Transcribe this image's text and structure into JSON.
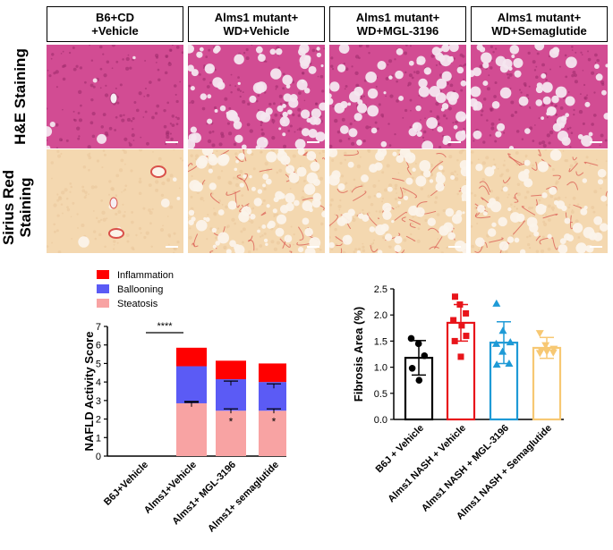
{
  "micrographs": {
    "column_headers": [
      "B6+CD\n+Vehicle",
      "Alms1 mutant+\nWD+Vehicle",
      "Alms1 mutant+\nWD+MGL-3196",
      "Alms1 mutant+\nWD+Semaglutide"
    ],
    "row_labels": [
      "H&E Staining",
      "Sirius Red\nStaining"
    ]
  },
  "chart_data": [
    {
      "type": "bar",
      "stacked": true,
      "ylabel": "NAFLD Activity Score",
      "ylim": [
        0,
        7
      ],
      "yticks": [
        0,
        1,
        2,
        3,
        4,
        5,
        6,
        7
      ],
      "categories": [
        "B6J+Vehicle",
        "Alms1+Vehicle",
        "Alms1+ MGL-3196",
        "Alms1+ semaglutide"
      ],
      "series": [
        {
          "name": "Steatosis",
          "color": "#f8a3a3",
          "values": [
            0,
            2.85,
            2.45,
            2.45
          ]
        },
        {
          "name": "Ballooning",
          "color": "#5b5bf5",
          "values": [
            0,
            2.0,
            1.7,
            1.55
          ]
        },
        {
          "name": "Inflammation",
          "color": "#ff0000",
          "values": [
            0,
            1.0,
            1.0,
            1.0
          ]
        }
      ],
      "error_tops": [
        [
          null,
          null,
          null
        ],
        [
          2.9,
          2.95,
          null
        ],
        [
          2.55,
          4.05,
          null
        ],
        [
          2.55,
          3.9,
          null
        ]
      ],
      "legend": [
        "Inflammation",
        "Ballooning",
        "Steatosis"
      ],
      "legend_position": "top-left",
      "annotations": {
        "significance_bracket": "****",
        "significance_stars": [
          "",
          "",
          "*",
          "*"
        ]
      }
    },
    {
      "type": "bar",
      "ylabel": "Fibrosis Area (%)",
      "ylim": [
        0,
        2.5
      ],
      "yticks": [
        0.0,
        0.5,
        1.0,
        1.5,
        2.0,
        2.5
      ],
      "categories": [
        "B6J + Vehicle",
        "Alms1 NASH + Vehicle",
        "Alms1 NASH + MGL-3196",
        "Alms1 NASH + Semaglutide"
      ],
      "values": [
        1.18,
        1.85,
        1.47,
        1.37
      ],
      "error": [
        0.33,
        0.35,
        0.4,
        0.2
      ],
      "colors": [
        "#000000",
        "#e8141a",
        "#1e9ad6",
        "#f7c873"
      ],
      "markers": [
        "circle",
        "square",
        "triangle",
        "triangle-down"
      ],
      "points": [
        [
          1.55,
          1.45,
          1.22,
          0.98,
          0.75
        ],
        [
          2.35,
          2.2,
          2.03,
          1.9,
          1.8,
          1.6,
          1.5,
          1.2
        ],
        [
          2.22,
          1.7,
          1.48,
          1.45,
          1.3,
          1.07,
          1.05
        ],
        [
          1.65,
          1.42,
          1.35,
          1.32,
          1.3,
          1.28,
          1.27
        ]
      ]
    }
  ]
}
